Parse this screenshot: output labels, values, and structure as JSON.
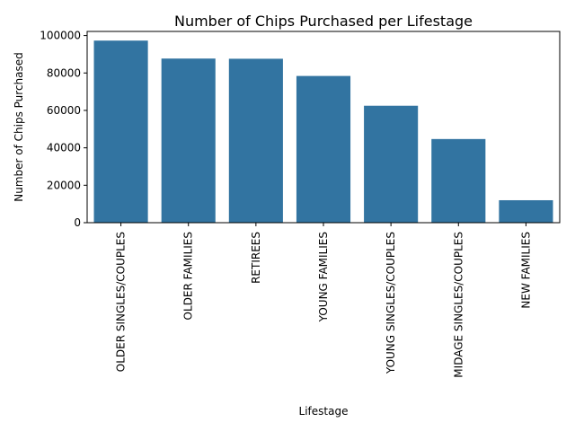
{
  "chart_data": {
    "type": "bar",
    "title": "Number of Chips Purchased per Lifestage",
    "xlabel": "Lifestage",
    "ylabel": "Number of Chips Purchased",
    "categories": [
      "OLDER SINGLES/COUPLES",
      "OLDER FAMILIES",
      "RETIREES",
      "YOUNG FAMILIES",
      "YOUNG SINGLES/COUPLES",
      "MIDAGE SINGLES/COUPLES",
      "NEW FAMILIES"
    ],
    "values": [
      97300,
      87700,
      87600,
      78400,
      62500,
      44700,
      12000
    ],
    "ylim": [
      0,
      102200
    ],
    "yticks": [
      0,
      20000,
      40000,
      60000,
      80000,
      100000
    ],
    "ytick_labels": [
      "0",
      "20000",
      "40000",
      "60000",
      "80000",
      "100000"
    ],
    "bar_color": "#3274a1",
    "grid": false,
    "legend": "none"
  }
}
